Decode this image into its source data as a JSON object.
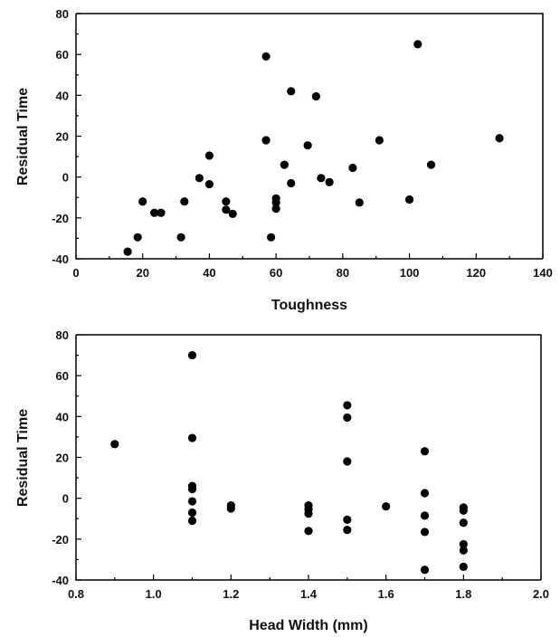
{
  "chart_data": [
    {
      "type": "scatter",
      "xlabel": "Toughness",
      "ylabel": "Residual  Time",
      "xlim": [
        0,
        140
      ],
      "ylim": [
        -40,
        80
      ],
      "xticks": [
        0,
        20,
        40,
        60,
        80,
        100,
        120,
        140
      ],
      "yticks": [
        -40,
        -20,
        0,
        20,
        40,
        60,
        80
      ],
      "xtick_labels": [
        "0",
        "20",
        "40",
        "60",
        "80",
        "100",
        "120",
        "140"
      ],
      "ytick_labels": [
        "-40",
        "-20",
        "0",
        "20",
        "40",
        "60",
        "80"
      ],
      "grid": false,
      "marker_color": "#000000",
      "points": [
        {
          "x": 15.5,
          "y": -36.5
        },
        {
          "x": 18.5,
          "y": -29.5
        },
        {
          "x": 20.0,
          "y": -12.0
        },
        {
          "x": 23.5,
          "y": -17.5
        },
        {
          "x": 25.5,
          "y": -17.5
        },
        {
          "x": 31.5,
          "y": -29.5
        },
        {
          "x": 32.5,
          "y": -12.0
        },
        {
          "x": 37.0,
          "y": -0.5
        },
        {
          "x": 40.0,
          "y": -3.5
        },
        {
          "x": 40.0,
          "y": 10.5
        },
        {
          "x": 45.0,
          "y": -12.0
        },
        {
          "x": 45.0,
          "y": -16.0
        },
        {
          "x": 47.0,
          "y": -18.0
        },
        {
          "x": 57.0,
          "y": 59.0
        },
        {
          "x": 57.0,
          "y": 18.0
        },
        {
          "x": 58.5,
          "y": -29.5
        },
        {
          "x": 60.0,
          "y": -10.5
        },
        {
          "x": 60.0,
          "y": -12.5
        },
        {
          "x": 60.0,
          "y": -15.5
        },
        {
          "x": 62.5,
          "y": 6.0
        },
        {
          "x": 64.5,
          "y": 42.0
        },
        {
          "x": 64.5,
          "y": -3.0
        },
        {
          "x": 69.5,
          "y": 15.5
        },
        {
          "x": 72.0,
          "y": 39.5
        },
        {
          "x": 73.5,
          "y": -0.5
        },
        {
          "x": 76.0,
          "y": -2.5
        },
        {
          "x": 83.0,
          "y": 4.5
        },
        {
          "x": 85.0,
          "y": -12.5
        },
        {
          "x": 91.0,
          "y": 18.0
        },
        {
          "x": 100.0,
          "y": -11.0
        },
        {
          "x": 102.5,
          "y": 65.0
        },
        {
          "x": 106.5,
          "y": 6.0
        },
        {
          "x": 127.0,
          "y": 19.0
        }
      ]
    },
    {
      "type": "scatter",
      "xlabel": "Head  Width  (mm)",
      "ylabel": "Residual  Time",
      "xlim": [
        0.8,
        2.0
      ],
      "ylim": [
        -40,
        80
      ],
      "xticks": [
        0.8,
        1.0,
        1.2,
        1.4,
        1.6,
        1.8,
        2.0
      ],
      "yticks": [
        -40,
        -20,
        0,
        20,
        40,
        60,
        80
      ],
      "xtick_labels": [
        "0.8",
        "1.0",
        "1.2",
        "1.4",
        "1.6",
        "1.8",
        "2.0"
      ],
      "ytick_labels": [
        "-40",
        "-20",
        "0",
        "20",
        "40",
        "60",
        "80"
      ],
      "grid": false,
      "marker_color": "#000000",
      "points": [
        {
          "x": 0.9,
          "y": 26.5
        },
        {
          "x": 1.1,
          "y": 70.0
        },
        {
          "x": 1.1,
          "y": 29.5
        },
        {
          "x": 1.1,
          "y": 6.0
        },
        {
          "x": 1.1,
          "y": 4.5
        },
        {
          "x": 1.1,
          "y": -1.5
        },
        {
          "x": 1.1,
          "y": -7.0
        },
        {
          "x": 1.1,
          "y": -11.0
        },
        {
          "x": 1.2,
          "y": -3.5
        },
        {
          "x": 1.2,
          "y": -5.0
        },
        {
          "x": 1.4,
          "y": -3.5
        },
        {
          "x": 1.4,
          "y": -5.5
        },
        {
          "x": 1.4,
          "y": -7.5
        },
        {
          "x": 1.4,
          "y": -16.0
        },
        {
          "x": 1.5,
          "y": 45.5
        },
        {
          "x": 1.5,
          "y": 39.5
        },
        {
          "x": 1.5,
          "y": 18.0
        },
        {
          "x": 1.5,
          "y": -10.5
        },
        {
          "x": 1.5,
          "y": -15.5
        },
        {
          "x": 1.6,
          "y": -4.0
        },
        {
          "x": 1.7,
          "y": 23.0
        },
        {
          "x": 1.7,
          "y": 2.5
        },
        {
          "x": 1.7,
          "y": -8.5
        },
        {
          "x": 1.7,
          "y": -16.5
        },
        {
          "x": 1.7,
          "y": -35.0
        },
        {
          "x": 1.8,
          "y": -4.5
        },
        {
          "x": 1.8,
          "y": -6.0
        },
        {
          "x": 1.8,
          "y": -12.0
        },
        {
          "x": 1.8,
          "y": -22.5
        },
        {
          "x": 1.8,
          "y": -25.5
        },
        {
          "x": 1.8,
          "y": -33.5
        }
      ]
    }
  ]
}
